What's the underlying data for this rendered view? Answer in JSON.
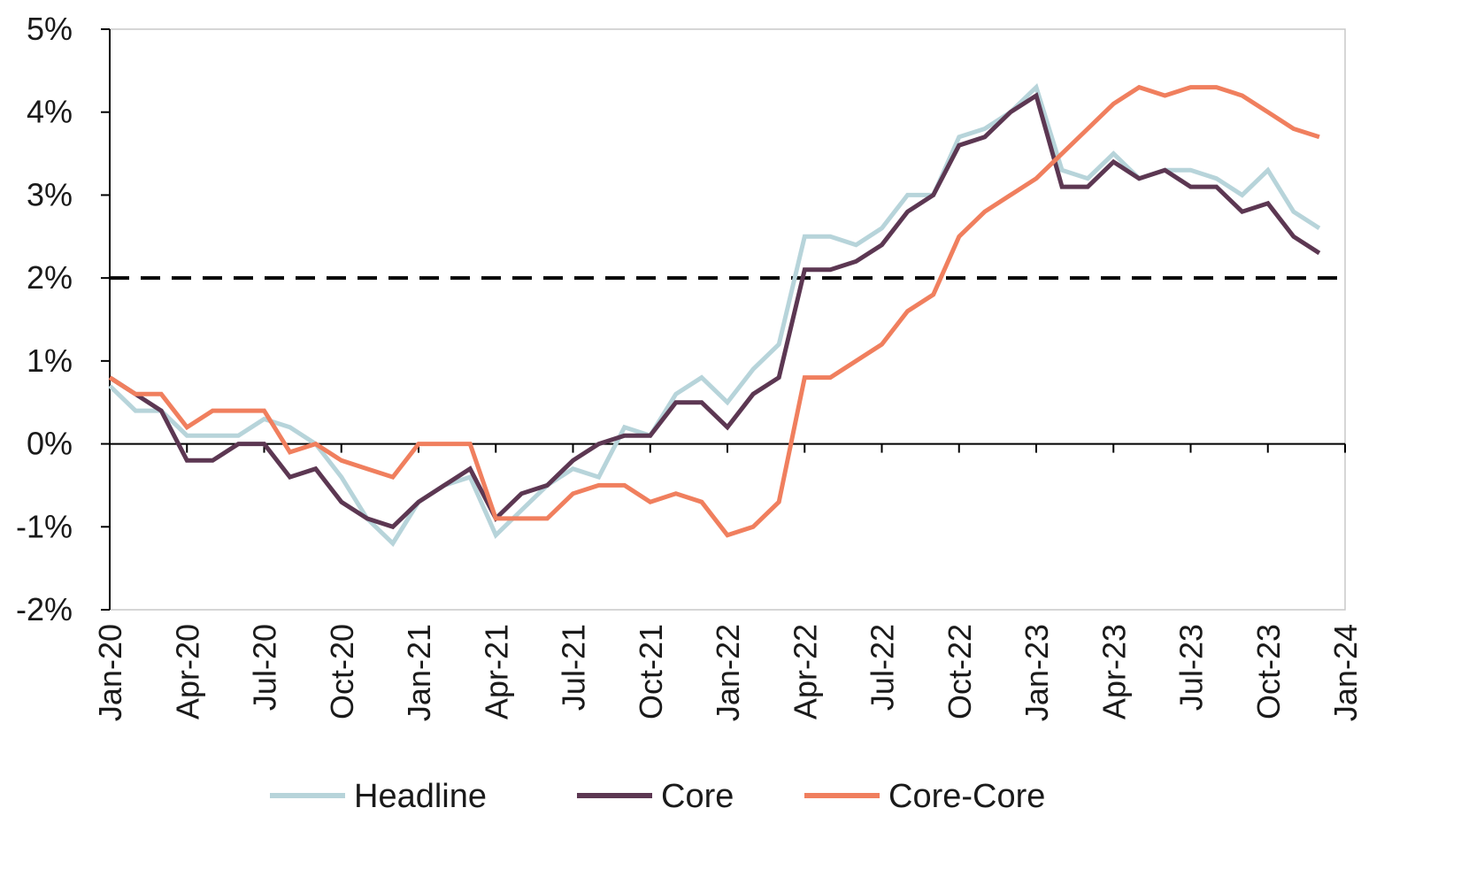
{
  "chart_data": {
    "type": "line",
    "title": "",
    "xlabel": "",
    "ylabel": "",
    "ylim": [
      -2,
      5
    ],
    "yticks": [
      "5%",
      "4%",
      "3%",
      "2%",
      "1%",
      "0%",
      "-1%",
      "-2%"
    ],
    "ytick_values": [
      5,
      4,
      3,
      2,
      1,
      0,
      -1,
      -2
    ],
    "xtick_labels": [
      "Jan-20",
      "Apr-20",
      "Jul-20",
      "Oct-20",
      "Jan-21",
      "Apr-21",
      "Jul-21",
      "Oct-21",
      "Jan-22",
      "Apr-22",
      "Jul-22",
      "Oct-22",
      "Jan-23",
      "Apr-23",
      "Jul-23",
      "Oct-23",
      "Jan-24"
    ],
    "x_months": [
      "Jan-20",
      "Feb-20",
      "Mar-20",
      "Apr-20",
      "May-20",
      "Jun-20",
      "Jul-20",
      "Aug-20",
      "Sep-20",
      "Oct-20",
      "Nov-20",
      "Dec-20",
      "Jan-21",
      "Feb-21",
      "Mar-21",
      "Apr-21",
      "May-21",
      "Jun-21",
      "Jul-21",
      "Aug-21",
      "Sep-21",
      "Oct-21",
      "Nov-21",
      "Dec-21",
      "Jan-22",
      "Feb-22",
      "Mar-22",
      "Apr-22",
      "May-22",
      "Jun-22",
      "Jul-22",
      "Aug-22",
      "Sep-22",
      "Oct-22",
      "Nov-22",
      "Dec-22",
      "Jan-23",
      "Feb-23",
      "Mar-23",
      "Apr-23",
      "May-23",
      "Jun-23",
      "Jul-23",
      "Aug-23",
      "Sep-23",
      "Oct-23",
      "Nov-23",
      "Dec-23"
    ],
    "target_line": {
      "value": 2,
      "style": "dashed",
      "color": "#000000"
    },
    "grid": false,
    "legend_position": "bottom",
    "series": [
      {
        "name": "Headline",
        "color": "#b7d4da",
        "values": [
          0.7,
          0.4,
          0.4,
          0.1,
          0.1,
          0.1,
          0.3,
          0.2,
          0.0,
          -0.4,
          -0.9,
          -1.2,
          -0.7,
          -0.5,
          -0.4,
          -1.1,
          -0.8,
          -0.5,
          -0.3,
          -0.4,
          0.2,
          0.1,
          0.6,
          0.8,
          0.5,
          0.9,
          1.2,
          2.5,
          2.5,
          2.4,
          2.6,
          3.0,
          3.0,
          3.7,
          3.8,
          4.0,
          4.3,
          3.3,
          3.2,
          3.5,
          3.2,
          3.3,
          3.3,
          3.2,
          3.0,
          3.3,
          2.8,
          2.6
        ]
      },
      {
        "name": "Core",
        "color": "#5c3752",
        "values": [
          0.8,
          0.6,
          0.4,
          -0.2,
          -0.2,
          0.0,
          0.0,
          -0.4,
          -0.3,
          -0.7,
          -0.9,
          -1.0,
          -0.7,
          -0.5,
          -0.3,
          -0.9,
          -0.6,
          -0.5,
          -0.2,
          0.0,
          0.1,
          0.1,
          0.5,
          0.5,
          0.2,
          0.6,
          0.8,
          2.1,
          2.1,
          2.2,
          2.4,
          2.8,
          3.0,
          3.6,
          3.7,
          4.0,
          4.2,
          3.1,
          3.1,
          3.4,
          3.2,
          3.3,
          3.1,
          3.1,
          2.8,
          2.9,
          2.5,
          2.3
        ]
      },
      {
        "name": "Core-Core",
        "color": "#f07f5e",
        "values": [
          0.8,
          0.6,
          0.6,
          0.2,
          0.4,
          0.4,
          0.4,
          -0.1,
          0.0,
          -0.2,
          -0.3,
          -0.4,
          0.0,
          0.0,
          0.0,
          -0.9,
          -0.9,
          -0.9,
          -0.6,
          -0.5,
          -0.5,
          -0.7,
          -0.6,
          -0.7,
          -1.1,
          -1.0,
          -0.7,
          0.8,
          0.8,
          1.0,
          1.2,
          1.6,
          1.8,
          2.5,
          2.8,
          3.0,
          3.2,
          3.5,
          3.8,
          4.1,
          4.3,
          4.2,
          4.3,
          4.3,
          4.2,
          4.0,
          3.8,
          3.7
        ]
      }
    ]
  }
}
